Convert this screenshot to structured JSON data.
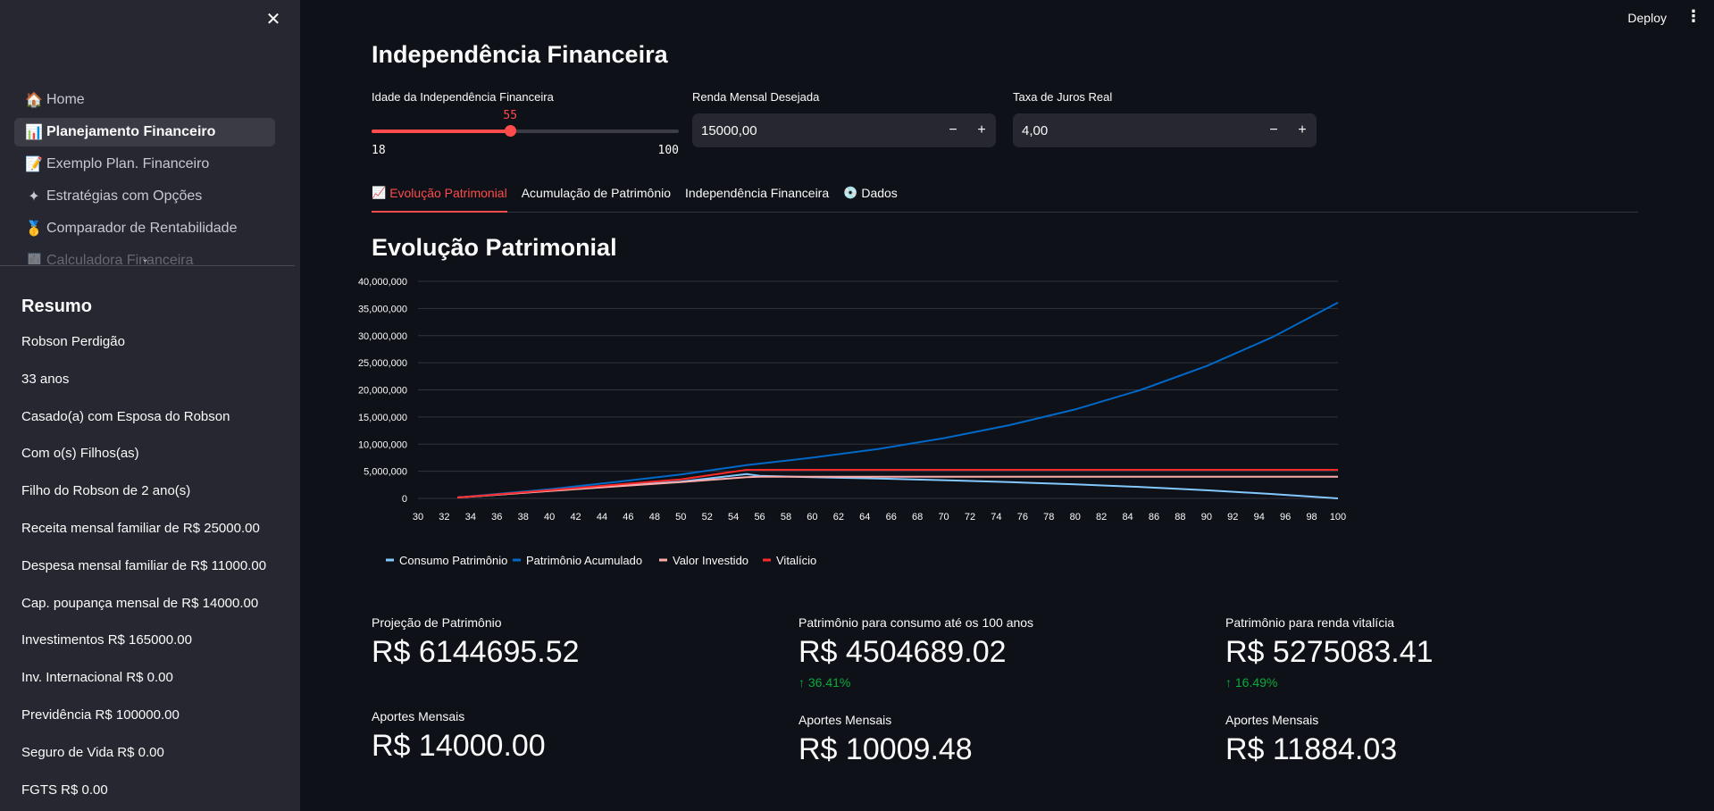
{
  "sidebar": {
    "nav": [
      {
        "icon": "🏠",
        "icon_name": "home-icon",
        "label": "Home",
        "active": false
      },
      {
        "icon": "📊",
        "icon_name": "chart-icon",
        "label": "Planejamento Financeiro",
        "active": true
      },
      {
        "icon": "📝",
        "icon_name": "memo-icon",
        "label": "Exemplo Plan. Financeiro",
        "active": false
      },
      {
        "icon": "✦",
        "icon_name": "sparkle-icon",
        "label": "Estratégias com Opções",
        "active": false
      },
      {
        "icon": "🥇",
        "icon_name": "medal-icon",
        "label": "Comparador de Rentabilidade",
        "active": false
      },
      {
        "icon": "🧾",
        "icon_name": "receipt-icon",
        "label": "Calculadora Financeira",
        "active": false
      }
    ],
    "summary_title": "Resumo",
    "summary": [
      "Robson Perdigão",
      "33 anos",
      "Casado(a) com Esposa do Robson",
      "Com o(s) Filhos(as)",
      "Filho do Robson de 2 ano(s)",
      "Receita mensal familiar de R$ 25000.00",
      "Despesa mensal familiar de R$ 11000.00",
      "Cap. poupança mensal de R$ 14000.00",
      "Investimentos R$ 165000.00",
      "Inv. Internacional R$ 0.00",
      "Previdência R$ 100000.00",
      "Seguro de Vida R$ 0.00",
      "FGTS R$ 0.00"
    ]
  },
  "header": {
    "deploy": "Deploy",
    "menu": "⋮",
    "close": "✕"
  },
  "main": {
    "title": "Independência Financeira",
    "slider": {
      "label": "Idade da Independência Financeira",
      "min": 18,
      "max": 100,
      "value": 55,
      "min_label": "18",
      "max_label": "100",
      "value_label": "55"
    },
    "renda": {
      "label": "Renda Mensal Desejada",
      "value": "15000,00"
    },
    "taxa": {
      "label": "Taxa de Juros Real",
      "value": "4,00"
    },
    "tabs": [
      {
        "icon": "📈",
        "label": "Evolução Patrimonial",
        "active": true
      },
      {
        "icon": "",
        "label": "Acumulação de Patrimônio",
        "active": false
      },
      {
        "icon": "",
        "label": "Independência Financeira",
        "active": false
      },
      {
        "icon": "💿",
        "label": "Dados",
        "active": false
      }
    ],
    "section_title": "Evolução Patrimonial",
    "metrics": [
      {
        "label": "Projeção de Patrimônio",
        "value": "R$ 6144695.52",
        "delta": ""
      },
      {
        "label": "Patrimônio para consumo até os 100 anos",
        "value": "R$ 4504689.02",
        "delta": "↑ 36.41%"
      },
      {
        "label": "Patrimônio para renda vitalícia",
        "value": "R$ 5275083.41",
        "delta": "↑ 16.49%"
      },
      {
        "label": "Aportes Mensais",
        "value": "R$ 14000.00",
        "delta": ""
      },
      {
        "label": "Aportes Mensais",
        "value": "R$ 10009.48",
        "delta": ""
      },
      {
        "label": "Aportes Mensais",
        "value": "R$ 11884.03",
        "delta": ""
      }
    ]
  },
  "chart_data": {
    "type": "line",
    "title": "",
    "xlabel": "",
    "ylabel": "",
    "xlim": [
      30,
      100
    ],
    "ylim": [
      0,
      40000000
    ],
    "x_ticks": [
      30,
      32,
      34,
      36,
      38,
      40,
      42,
      44,
      46,
      48,
      50,
      52,
      54,
      56,
      58,
      60,
      62,
      64,
      66,
      68,
      70,
      72,
      74,
      76,
      78,
      80,
      82,
      84,
      86,
      88,
      90,
      92,
      94,
      96,
      98,
      100
    ],
    "y_ticks": [
      0,
      5000000,
      10000000,
      15000000,
      20000000,
      25000000,
      30000000,
      35000000,
      40000000
    ],
    "y_tick_labels": [
      "0",
      "5,000,000",
      "10,000,000",
      "15,000,000",
      "20,000,000",
      "25,000,000",
      "30,000,000",
      "35,000,000",
      "40,000,000"
    ],
    "grid": true,
    "legend_position": "bottom-left",
    "series": [
      {
        "name": "Consumo Patrimônio",
        "color": "#83c9ff",
        "x": [
          33,
          35,
          40,
          45,
          50,
          55,
          56,
          60,
          65,
          70,
          75,
          80,
          85,
          90,
          95,
          100
        ],
        "y": [
          165000,
          500000,
          1400000,
          2300000,
          3100000,
          4500000,
          4150000,
          3900000,
          3650000,
          3350000,
          3000000,
          2600000,
          2100000,
          1500000,
          800000,
          0
        ]
      },
      {
        "name": "Patrimônio Acumulado",
        "color": "#0068c9",
        "x": [
          33,
          35,
          40,
          45,
          50,
          55,
          60,
          65,
          70,
          75,
          80,
          85,
          90,
          95,
          100
        ],
        "y": [
          165000,
          600000,
          1700000,
          3000000,
          4400000,
          6144695,
          7500000,
          9100000,
          11100000,
          13500000,
          16400000,
          20000000,
          24400000,
          29700000,
          36100000
        ]
      },
      {
        "name": "Valor Investido",
        "color": "#ffabab",
        "x": [
          33,
          35,
          40,
          45,
          50,
          55,
          56,
          100
        ],
        "y": [
          165000,
          500000,
          1350000,
          2200000,
          3000000,
          3900000,
          4000000,
          4000000
        ]
      },
      {
        "name": "Vitalício",
        "color": "#ff2b2b",
        "x": [
          33,
          35,
          40,
          45,
          50,
          55,
          56,
          100
        ],
        "y": [
          165000,
          550000,
          1500000,
          2500000,
          3500000,
          5275083,
          5275083,
          5275083
        ]
      }
    ]
  }
}
